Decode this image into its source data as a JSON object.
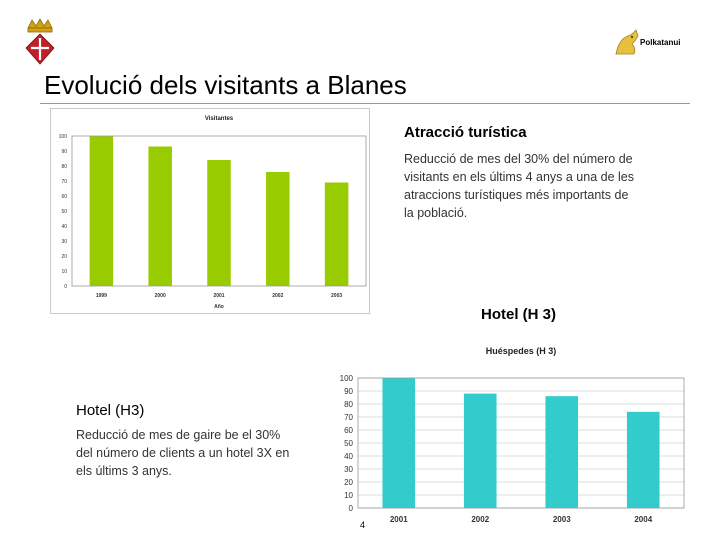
{
  "header": {
    "crest_icon": "municipal-crest-icon",
    "brand": {
      "icon": "dragon-logo-icon",
      "label": "Polkatanui"
    }
  },
  "slide": {
    "title": "Evolució dels visitants a Blanes",
    "page_number": "4"
  },
  "attraction": {
    "heading": "Atracció turística",
    "body": "Reducció de mes del 30% del número de visitants en els últims 4 anys a una de les atraccions turístiques més importants de la població."
  },
  "hotel": {
    "right_heading": "Hotel (H 3)",
    "left_heading": "Hotel (H3)",
    "left_body": "Reducció de mes de gaire be el 30% del número de clients a un hotel 3X en els últims 3 anys."
  },
  "colors": {
    "chart1_bar": "#99cc00",
    "chart2_bar": "#33cccc",
    "plot_border": "#999999",
    "grid": "#d0d0d0"
  },
  "chart_data": [
    {
      "type": "bar",
      "title": "Visitantes",
      "xlabel": "Año",
      "ylabel": "",
      "categories": [
        "1999",
        "2000",
        "2001",
        "2002",
        "2003"
      ],
      "values": [
        100,
        93,
        84,
        76,
        69
      ],
      "ylim": [
        0,
        100
      ],
      "yticks": [
        0,
        10,
        20,
        30,
        40,
        50,
        60,
        70,
        80,
        90,
        100
      ],
      "grid": false,
      "legend": "none"
    },
    {
      "type": "bar",
      "title": "Huéspedes (H 3)",
      "xlabel": "",
      "ylabel": "",
      "categories": [
        "2001",
        "2002",
        "2003",
        "2004"
      ],
      "values": [
        100,
        88,
        86,
        74
      ],
      "ylim": [
        0,
        100
      ],
      "yticks": [
        0,
        10,
        20,
        30,
        40,
        50,
        60,
        70,
        80,
        90,
        100
      ],
      "grid": true,
      "legend": "none"
    }
  ]
}
